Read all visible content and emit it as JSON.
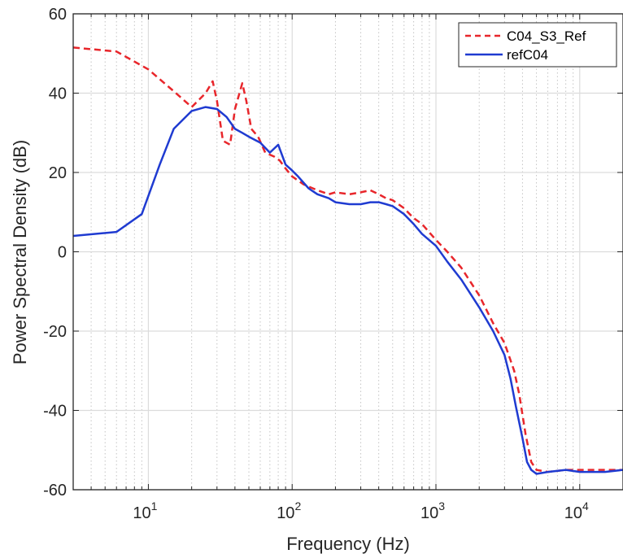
{
  "chart_data": {
    "type": "line",
    "title": "",
    "xlabel": "Frequency (Hz)",
    "ylabel": "Power Spectral Density  (dB)",
    "x_scale": "log",
    "xlim": [
      3,
      20000
    ],
    "ylim": [
      -60,
      60
    ],
    "grid": true,
    "legend_position": "top-right",
    "xtick_labels": [
      {
        "base": "10",
        "exp": "1",
        "value": 10
      },
      {
        "base": "10",
        "exp": "2",
        "value": 100
      },
      {
        "base": "10",
        "exp": "3",
        "value": 1000
      },
      {
        "base": "10",
        "exp": "4",
        "value": 10000
      }
    ],
    "yticks": [
      60,
      40,
      20,
      0,
      -20,
      -40,
      -60
    ],
    "ytick_labels": [
      "60",
      "40",
      "20",
      "0",
      "-20",
      "-40",
      "-60"
    ],
    "series": [
      {
        "name": "C04_S3_Ref",
        "color": "#e8262b",
        "style": "dashed",
        "x": [
          3,
          6,
          10,
          15,
          20,
          25,
          28,
          30,
          33,
          37,
          40,
          45,
          48,
          52,
          58,
          65,
          75,
          82,
          90,
          100,
          120,
          150,
          180,
          200,
          250,
          300,
          350,
          400,
          450,
          500,
          600,
          700,
          800,
          1000,
          1200,
          1500,
          2000,
          2500,
          3000,
          3500,
          3800,
          4200,
          4600,
          5000,
          6000,
          8000,
          10000,
          15000,
          20000
        ],
        "y": [
          51.5,
          50.5,
          46,
          40.5,
          36.5,
          40,
          43,
          38,
          28,
          27,
          36,
          42.5,
          38,
          31,
          29,
          25,
          24,
          23,
          21,
          19,
          17,
          15.5,
          14.5,
          15,
          14.5,
          15,
          15.5,
          14.5,
          13.5,
          13,
          11,
          8.5,
          7,
          3,
          0,
          -4,
          -11,
          -18,
          -23,
          -30,
          -36,
          -46,
          -53,
          -55,
          -55.5,
          -55,
          -55,
          -55,
          -55
        ]
      },
      {
        "name": "refC04",
        "color": "#1f3bd1",
        "style": "solid",
        "x": [
          3,
          6,
          9,
          12,
          15,
          20,
          25,
          30,
          35,
          40,
          45,
          50,
          60,
          70,
          80,
          90,
          100,
          110,
          130,
          150,
          180,
          200,
          250,
          300,
          350,
          400,
          450,
          500,
          600,
          700,
          800,
          1000,
          1200,
          1500,
          2000,
          2500,
          3000,
          3300,
          3600,
          4000,
          4300,
          4600,
          5000,
          6000,
          8000,
          10000,
          15000,
          20000
        ],
        "y": [
          4,
          5,
          9.5,
          22,
          31,
          35.5,
          36.5,
          36,
          34,
          31,
          30,
          29,
          27.5,
          25,
          27,
          22,
          20.5,
          19,
          16,
          14.5,
          13.5,
          12.5,
          12,
          12,
          12.5,
          12.5,
          12,
          11.5,
          9.5,
          7,
          4.5,
          1.5,
          -2.5,
          -7,
          -14,
          -20,
          -26,
          -32,
          -39,
          -47,
          -53,
          -55,
          -56,
          -55.5,
          -55,
          -55.5,
          -55.5,
          -55
        ]
      }
    ]
  }
}
